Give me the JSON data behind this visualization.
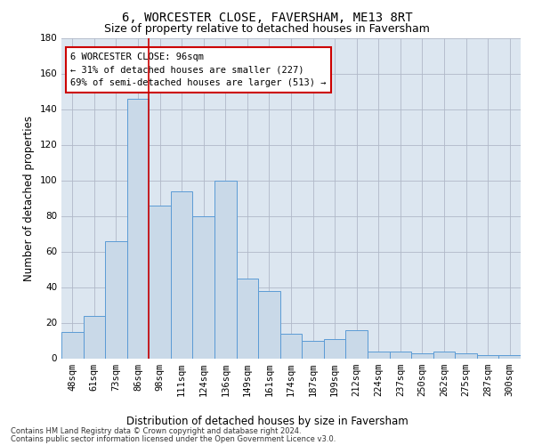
{
  "title": "6, WORCESTER CLOSE, FAVERSHAM, ME13 8RT",
  "subtitle": "Size of property relative to detached houses in Faversham",
  "xlabel": "Distribution of detached houses by size in Faversham",
  "ylabel": "Number of detached properties",
  "bar_labels": [
    "48sqm",
    "61sqm",
    "73sqm",
    "86sqm",
    "98sqm",
    "111sqm",
    "124sqm",
    "136sqm",
    "149sqm",
    "161sqm",
    "174sqm",
    "187sqm",
    "199sqm",
    "212sqm",
    "224sqm",
    "237sqm",
    "250sqm",
    "262sqm",
    "275sqm",
    "287sqm",
    "300sqm"
  ],
  "bar_values": [
    15,
    24,
    66,
    146,
    86,
    94,
    80,
    100,
    45,
    38,
    14,
    10,
    11,
    16,
    4,
    4,
    3,
    4,
    3,
    2,
    2
  ],
  "bar_color": "#c9d9e8",
  "bar_edge_color": "#5b9bd5",
  "ylim": [
    0,
    180
  ],
  "yticks": [
    0,
    20,
    40,
    60,
    80,
    100,
    120,
    140,
    160,
    180
  ],
  "property_line_color": "#cc0000",
  "annotation_title": "6 WORCESTER CLOSE: 96sqm",
  "annotation_line1": "← 31% of detached houses are smaller (227)",
  "annotation_line2": "69% of semi-detached houses are larger (513) →",
  "annotation_box_color": "#cc0000",
  "footer_line1": "Contains HM Land Registry data © Crown copyright and database right 2024.",
  "footer_line2": "Contains public sector information licensed under the Open Government Licence v3.0.",
  "background_color": "#ffffff",
  "plot_bg_color": "#dce6f0",
  "grid_color": "#b0b8c8",
  "title_fontsize": 10,
  "subtitle_fontsize": 9,
  "axis_label_fontsize": 8.5,
  "tick_fontsize": 7.5,
  "annotation_fontsize": 7.5,
  "footer_fontsize": 6
}
